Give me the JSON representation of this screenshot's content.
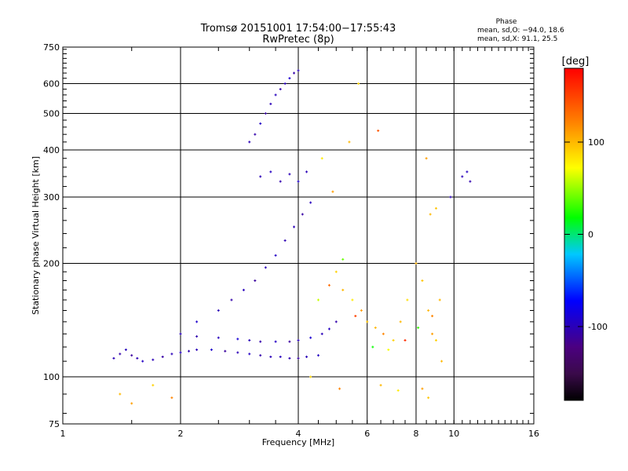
{
  "chart_data": {
    "type": "scatter",
    "title": "Tromsø 20151001 17:54:00−17:55:43",
    "subtitle": "RwPretec (8p)",
    "xlabel": "Frequency [MHz]",
    "ylabel": "Stationary phase Virtual Height [km]",
    "x_scale": "log",
    "y_scale": "log",
    "xlim": [
      1,
      16
    ],
    "ylim": [
      75,
      750
    ],
    "x_ticks": [
      1,
      2,
      4,
      6,
      8,
      10,
      16
    ],
    "y_ticks": [
      75,
      100,
      200,
      300,
      400,
      500,
      600,
      750
    ],
    "grid": true,
    "phase_legend": {
      "title": "Phase",
      "line_o": "mean, sd,O: −94.0, 18.6",
      "line_x": "mean, sd,X:  91.1, 25.5"
    },
    "colorbar": {
      "label": "[deg]",
      "range": [
        -180,
        180
      ],
      "ticks": [
        100,
        0,
        -100
      ],
      "colormap": "rainbow (black → purple → blue → cyan → green → yellow → orange → red)"
    },
    "series": [
      {
        "values": [
          [
            1.35,
            112,
            -100
          ],
          [
            1.4,
            115,
            -105
          ],
          [
            1.45,
            118,
            -98
          ],
          [
            1.5,
            114,
            -110
          ],
          [
            1.55,
            112,
            -102
          ],
          [
            1.6,
            110,
            -95
          ],
          [
            1.7,
            111,
            -100
          ],
          [
            1.8,
            113,
            -108
          ],
          [
            1.9,
            115,
            -100
          ],
          [
            2.0,
            116,
            -96
          ],
          [
            2.1,
            117,
            -104
          ],
          [
            2.2,
            118,
            -100
          ],
          [
            2.4,
            118,
            -92
          ],
          [
            2.6,
            117,
            -110
          ],
          [
            2.8,
            116,
            -100
          ],
          [
            3.0,
            115,
            -95
          ],
          [
            3.2,
            114,
            -105
          ],
          [
            3.4,
            113,
            -100
          ],
          [
            3.6,
            113,
            -98
          ],
          [
            3.8,
            112,
            -102
          ],
          [
            4.0,
            112,
            -110
          ],
          [
            4.2,
            113,
            -100
          ],
          [
            4.5,
            114,
            -96
          ],
          [
            2.0,
            130,
            -100
          ],
          [
            2.2,
            128,
            -104
          ],
          [
            2.5,
            127,
            -98
          ],
          [
            2.8,
            126,
            -88
          ],
          [
            3.0,
            125,
            -100
          ],
          [
            3.2,
            124,
            -105
          ],
          [
            3.5,
            124,
            -95
          ],
          [
            3.8,
            124,
            -110
          ],
          [
            4.0,
            125,
            -100
          ],
          [
            4.3,
            127,
            -90
          ],
          [
            4.6,
            130,
            -100
          ],
          [
            4.8,
            134,
            -96
          ],
          [
            5.0,
            140,
            -105
          ],
          [
            2.2,
            140,
            -92
          ],
          [
            2.5,
            150,
            -100
          ],
          [
            2.7,
            160,
            -105
          ],
          [
            2.9,
            170,
            -98
          ],
          [
            3.1,
            180,
            -110
          ],
          [
            3.3,
            195,
            -100
          ],
          [
            3.5,
            210,
            -95
          ],
          [
            3.7,
            230,
            -102
          ],
          [
            3.9,
            250,
            -100
          ],
          [
            4.1,
            270,
            -108
          ],
          [
            4.3,
            290,
            -98
          ],
          [
            3.0,
            420,
            -100
          ],
          [
            3.1,
            440,
            -105
          ],
          [
            3.2,
            470,
            -95
          ],
          [
            3.3,
            500,
            -110
          ],
          [
            3.4,
            530,
            -100
          ],
          [
            3.5,
            560,
            -98
          ],
          [
            3.6,
            580,
            -104
          ],
          [
            3.7,
            600,
            -100
          ],
          [
            3.8,
            620,
            -90
          ],
          [
            3.9,
            640,
            -105
          ],
          [
            4.0,
            650,
            -100
          ],
          [
            3.2,
            340,
            -100
          ],
          [
            3.4,
            350,
            -96
          ],
          [
            3.6,
            330,
            -104
          ],
          [
            3.8,
            345,
            -100
          ],
          [
            4.0,
            330,
            -92
          ],
          [
            4.2,
            350,
            -100
          ],
          [
            10.5,
            340,
            -100
          ],
          [
            10.8,
            350,
            -96
          ],
          [
            11.0,
            330,
            -104
          ],
          [
            9.8,
            300,
            -100
          ]
        ]
      },
      {
        "values": [
          [
            5.0,
            190,
            90
          ],
          [
            5.2,
            170,
            100
          ],
          [
            5.5,
            160,
            80
          ],
          [
            5.8,
            150,
            110
          ],
          [
            6.0,
            140,
            95
          ],
          [
            6.3,
            135,
            100
          ],
          [
            6.6,
            130,
            120
          ],
          [
            7.0,
            125,
            90
          ],
          [
            7.3,
            140,
            100
          ],
          [
            7.6,
            160,
            85
          ],
          [
            8.0,
            200,
            105
          ],
          [
            8.3,
            180,
            95
          ],
          [
            8.6,
            150,
            100
          ],
          [
            8.8,
            130,
            110
          ],
          [
            9.0,
            125,
            90
          ],
          [
            9.2,
            160,
            100
          ],
          [
            9.0,
            280,
            95
          ],
          [
            8.7,
            270,
            100
          ],
          [
            8.5,
            380,
            110
          ],
          [
            4.5,
            160,
            60
          ],
          [
            4.8,
            175,
            130
          ],
          [
            5.2,
            205,
            40
          ],
          [
            5.6,
            145,
            150
          ],
          [
            6.2,
            120,
            20
          ],
          [
            6.8,
            118,
            70
          ],
          [
            7.5,
            125,
            160
          ],
          [
            8.1,
            135,
            30
          ],
          [
            8.8,
            145,
            120
          ],
          [
            5.4,
            420,
            100
          ],
          [
            5.7,
            600,
            90
          ],
          [
            4.6,
            380,
            80
          ],
          [
            4.9,
            310,
            110
          ],
          [
            6.4,
            450,
            140
          ],
          [
            1.4,
            90,
            100
          ],
          [
            1.5,
            85,
            110
          ],
          [
            1.7,
            95,
            90
          ],
          [
            1.9,
            88,
            120
          ],
          [
            6.5,
            95,
            100
          ],
          [
            7.2,
            92,
            80
          ],
          [
            8.3,
            93,
            110
          ],
          [
            8.6,
            88,
            95
          ],
          [
            9.3,
            110,
            100
          ],
          [
            4.3,
            100,
            90
          ],
          [
            5.1,
            93,
            120
          ]
        ]
      }
    ]
  }
}
